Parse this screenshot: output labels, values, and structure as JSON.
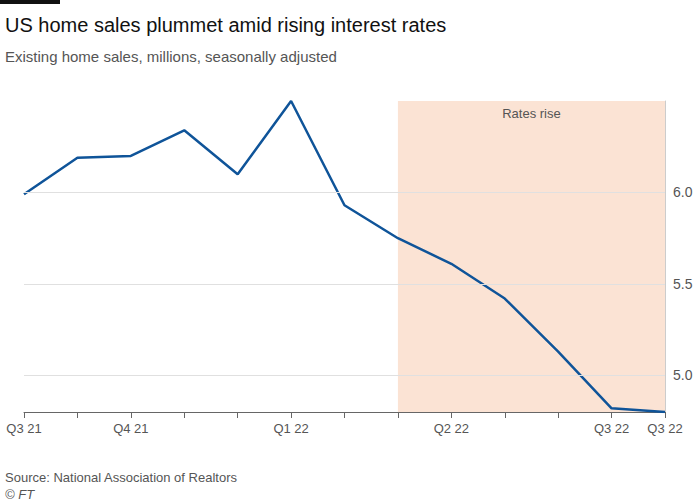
{
  "chart_data": {
    "type": "line",
    "title": "US home sales plummet amid rising interest rates",
    "subtitle": "Existing home sales, millions, seasonally adjusted",
    "source": "Source: National Association of Realtors",
    "credit": "© FT",
    "categories": [
      "Q3 21",
      null,
      "Q4 21",
      null,
      null,
      "Q1 22",
      null,
      null,
      "Q2 22",
      null,
      null,
      "Q3 22",
      "Q3 22"
    ],
    "values": [
      5.99,
      6.19,
      6.2,
      6.34,
      6.1,
      6.5,
      5.93,
      5.75,
      5.61,
      5.42,
      5.13,
      4.82,
      4.8
    ],
    "color": "#0f5499",
    "ylim": [
      4.8,
      6.5
    ],
    "yticks": [
      {
        "value": 5,
        "label": "5.0"
      },
      {
        "value": 5.5,
        "label": "5.5"
      },
      {
        "value": 6,
        "label": "6.0"
      }
    ],
    "grid": true,
    "annotations": [
      {
        "text": "Rates rise",
        "x_start": 7,
        "x_end": 12,
        "color": "#fbe3d4"
      }
    ]
  }
}
